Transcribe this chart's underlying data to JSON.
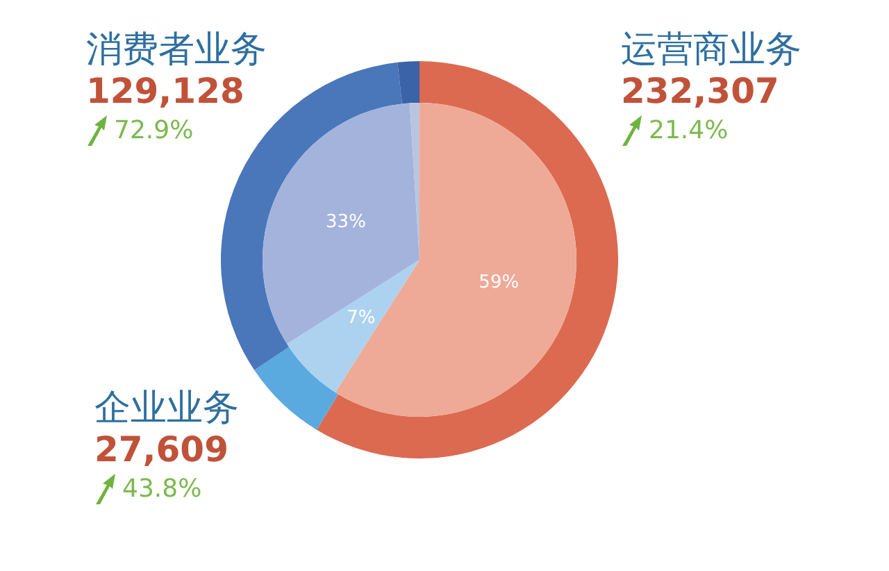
{
  "chart_data": {
    "type": "donut",
    "categories": [
      "运营商业务",
      "企业业务",
      "消费者业务",
      null
    ],
    "series": [
      {
        "type": "donut",
        "values": [
          232307,
          27609,
          129128,
          7000
        ],
        "colors": [
          "#dc6a50",
          "#5aaae0",
          "#4a76ba",
          "#3b63a8"
        ],
        "value_labels": [
          "232,307",
          "27,609",
          "129,128",
          null
        ]
      },
      {
        "type": "pie",
        "values": [
          59,
          7,
          33,
          1
        ],
        "colors": [
          "#eeaa96",
          "#acd2f0",
          "#a3b3dc",
          "#b9c4df"
        ],
        "value_labels": [
          "59%",
          "7%",
          "33%",
          null
        ]
      }
    ],
    "annotations": [
      "21.4%",
      "43.8%",
      "72.9%"
    ]
  }
}
